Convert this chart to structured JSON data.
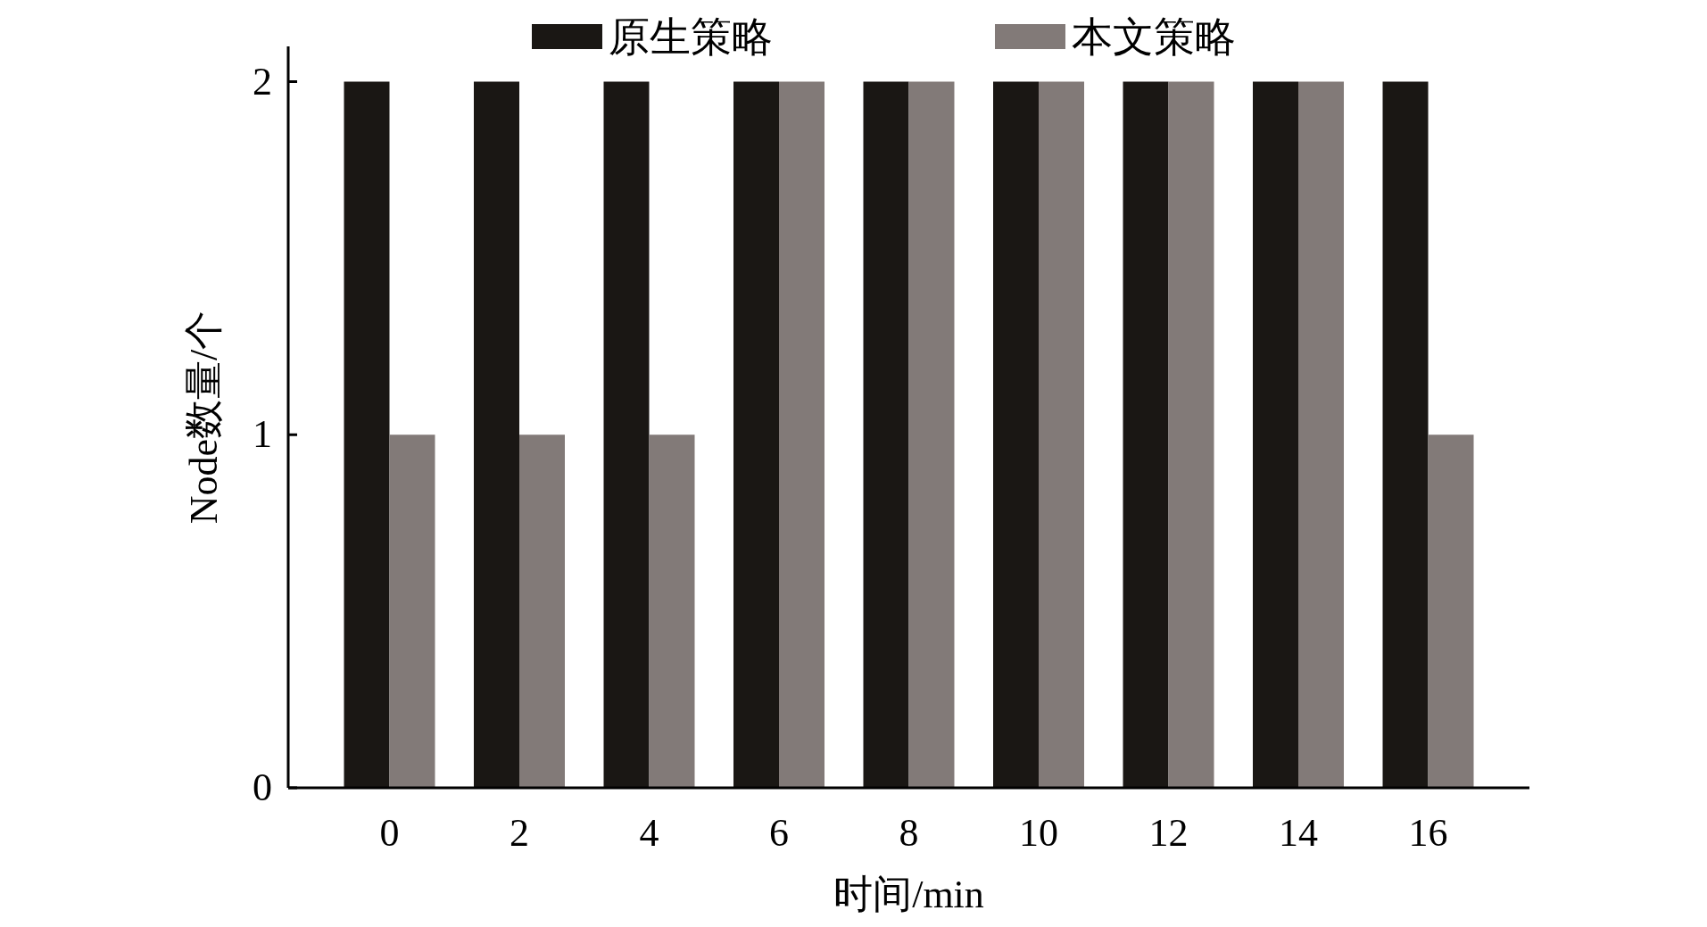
{
  "chart_data": {
    "type": "bar",
    "xlabel": "时间/min",
    "ylabel": "Node数量/个",
    "categories": [
      "0",
      "2",
      "4",
      "6",
      "8",
      "10",
      "12",
      "14",
      "16"
    ],
    "series": [
      {
        "name": "原生策略",
        "color": "#1a1714",
        "values": [
          2,
          2,
          2,
          2,
          2,
          2,
          2,
          2,
          2
        ]
      },
      {
        "name": "本文策略",
        "color": "#827a78",
        "values": [
          1,
          1,
          1,
          2,
          2,
          2,
          2,
          2,
          1
        ]
      }
    ],
    "ylim": [
      0,
      2.1
    ],
    "yticks": [
      0,
      1,
      2
    ],
    "legend": "top"
  }
}
